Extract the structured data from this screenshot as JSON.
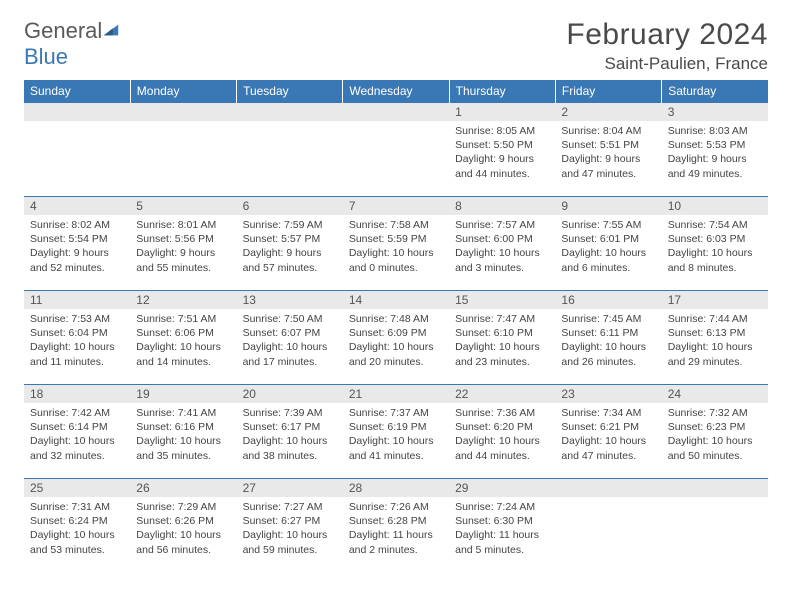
{
  "brand": {
    "part1": "General",
    "part2": "Blue"
  },
  "title": "February 2024",
  "location": "Saint-Paulien, France",
  "colors": {
    "header_bg": "#3a78b5",
    "header_text": "#ffffff",
    "daynum_bg": "#e9e9e9",
    "border": "#3a78b5",
    "body_text": "#444444"
  },
  "weekdays": [
    "Sunday",
    "Monday",
    "Tuesday",
    "Wednesday",
    "Thursday",
    "Friday",
    "Saturday"
  ],
  "weeks": [
    [
      null,
      null,
      null,
      null,
      {
        "n": "1",
        "sr": "Sunrise: 8:05 AM",
        "ss": "Sunset: 5:50 PM",
        "d1": "Daylight: 9 hours",
        "d2": "and 44 minutes."
      },
      {
        "n": "2",
        "sr": "Sunrise: 8:04 AM",
        "ss": "Sunset: 5:51 PM",
        "d1": "Daylight: 9 hours",
        "d2": "and 47 minutes."
      },
      {
        "n": "3",
        "sr": "Sunrise: 8:03 AM",
        "ss": "Sunset: 5:53 PM",
        "d1": "Daylight: 9 hours",
        "d2": "and 49 minutes."
      }
    ],
    [
      {
        "n": "4",
        "sr": "Sunrise: 8:02 AM",
        "ss": "Sunset: 5:54 PM",
        "d1": "Daylight: 9 hours",
        "d2": "and 52 minutes."
      },
      {
        "n": "5",
        "sr": "Sunrise: 8:01 AM",
        "ss": "Sunset: 5:56 PM",
        "d1": "Daylight: 9 hours",
        "d2": "and 55 minutes."
      },
      {
        "n": "6",
        "sr": "Sunrise: 7:59 AM",
        "ss": "Sunset: 5:57 PM",
        "d1": "Daylight: 9 hours",
        "d2": "and 57 minutes."
      },
      {
        "n": "7",
        "sr": "Sunrise: 7:58 AM",
        "ss": "Sunset: 5:59 PM",
        "d1": "Daylight: 10 hours",
        "d2": "and 0 minutes."
      },
      {
        "n": "8",
        "sr": "Sunrise: 7:57 AM",
        "ss": "Sunset: 6:00 PM",
        "d1": "Daylight: 10 hours",
        "d2": "and 3 minutes."
      },
      {
        "n": "9",
        "sr": "Sunrise: 7:55 AM",
        "ss": "Sunset: 6:01 PM",
        "d1": "Daylight: 10 hours",
        "d2": "and 6 minutes."
      },
      {
        "n": "10",
        "sr": "Sunrise: 7:54 AM",
        "ss": "Sunset: 6:03 PM",
        "d1": "Daylight: 10 hours",
        "d2": "and 8 minutes."
      }
    ],
    [
      {
        "n": "11",
        "sr": "Sunrise: 7:53 AM",
        "ss": "Sunset: 6:04 PM",
        "d1": "Daylight: 10 hours",
        "d2": "and 11 minutes."
      },
      {
        "n": "12",
        "sr": "Sunrise: 7:51 AM",
        "ss": "Sunset: 6:06 PM",
        "d1": "Daylight: 10 hours",
        "d2": "and 14 minutes."
      },
      {
        "n": "13",
        "sr": "Sunrise: 7:50 AM",
        "ss": "Sunset: 6:07 PM",
        "d1": "Daylight: 10 hours",
        "d2": "and 17 minutes."
      },
      {
        "n": "14",
        "sr": "Sunrise: 7:48 AM",
        "ss": "Sunset: 6:09 PM",
        "d1": "Daylight: 10 hours",
        "d2": "and 20 minutes."
      },
      {
        "n": "15",
        "sr": "Sunrise: 7:47 AM",
        "ss": "Sunset: 6:10 PM",
        "d1": "Daylight: 10 hours",
        "d2": "and 23 minutes."
      },
      {
        "n": "16",
        "sr": "Sunrise: 7:45 AM",
        "ss": "Sunset: 6:11 PM",
        "d1": "Daylight: 10 hours",
        "d2": "and 26 minutes."
      },
      {
        "n": "17",
        "sr": "Sunrise: 7:44 AM",
        "ss": "Sunset: 6:13 PM",
        "d1": "Daylight: 10 hours",
        "d2": "and 29 minutes."
      }
    ],
    [
      {
        "n": "18",
        "sr": "Sunrise: 7:42 AM",
        "ss": "Sunset: 6:14 PM",
        "d1": "Daylight: 10 hours",
        "d2": "and 32 minutes."
      },
      {
        "n": "19",
        "sr": "Sunrise: 7:41 AM",
        "ss": "Sunset: 6:16 PM",
        "d1": "Daylight: 10 hours",
        "d2": "and 35 minutes."
      },
      {
        "n": "20",
        "sr": "Sunrise: 7:39 AM",
        "ss": "Sunset: 6:17 PM",
        "d1": "Daylight: 10 hours",
        "d2": "and 38 minutes."
      },
      {
        "n": "21",
        "sr": "Sunrise: 7:37 AM",
        "ss": "Sunset: 6:19 PM",
        "d1": "Daylight: 10 hours",
        "d2": "and 41 minutes."
      },
      {
        "n": "22",
        "sr": "Sunrise: 7:36 AM",
        "ss": "Sunset: 6:20 PM",
        "d1": "Daylight: 10 hours",
        "d2": "and 44 minutes."
      },
      {
        "n": "23",
        "sr": "Sunrise: 7:34 AM",
        "ss": "Sunset: 6:21 PM",
        "d1": "Daylight: 10 hours",
        "d2": "and 47 minutes."
      },
      {
        "n": "24",
        "sr": "Sunrise: 7:32 AM",
        "ss": "Sunset: 6:23 PM",
        "d1": "Daylight: 10 hours",
        "d2": "and 50 minutes."
      }
    ],
    [
      {
        "n": "25",
        "sr": "Sunrise: 7:31 AM",
        "ss": "Sunset: 6:24 PM",
        "d1": "Daylight: 10 hours",
        "d2": "and 53 minutes."
      },
      {
        "n": "26",
        "sr": "Sunrise: 7:29 AM",
        "ss": "Sunset: 6:26 PM",
        "d1": "Daylight: 10 hours",
        "d2": "and 56 minutes."
      },
      {
        "n": "27",
        "sr": "Sunrise: 7:27 AM",
        "ss": "Sunset: 6:27 PM",
        "d1": "Daylight: 10 hours",
        "d2": "and 59 minutes."
      },
      {
        "n": "28",
        "sr": "Sunrise: 7:26 AM",
        "ss": "Sunset: 6:28 PM",
        "d1": "Daylight: 11 hours",
        "d2": "and 2 minutes."
      },
      {
        "n": "29",
        "sr": "Sunrise: 7:24 AM",
        "ss": "Sunset: 6:30 PM",
        "d1": "Daylight: 11 hours",
        "d2": "and 5 minutes."
      },
      null,
      null
    ]
  ]
}
